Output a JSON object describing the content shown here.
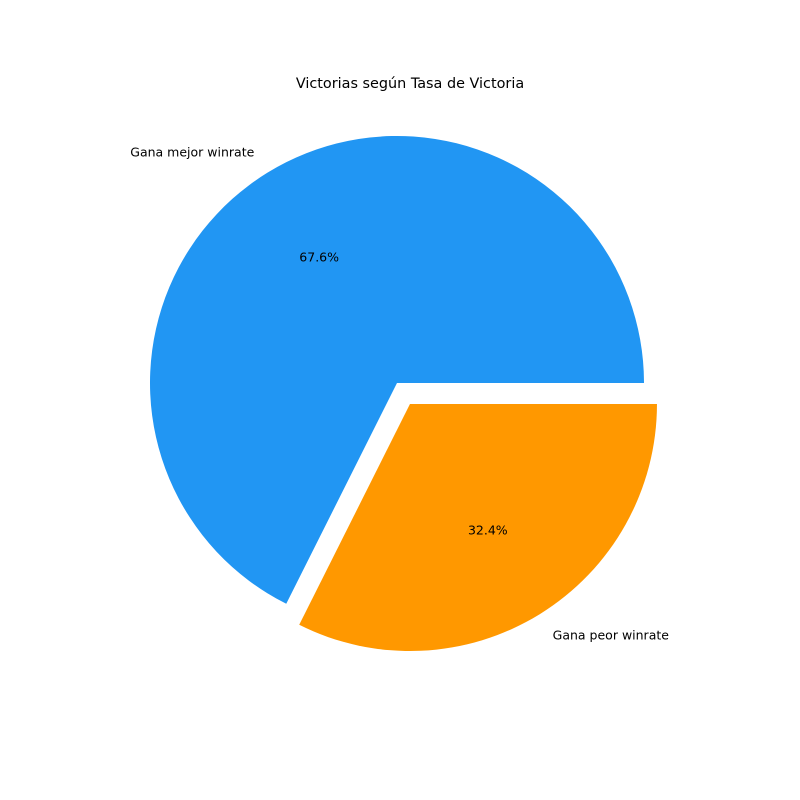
{
  "chart_data": {
    "type": "pie",
    "title": "Victorias según Tasa de Victoria",
    "slices": [
      {
        "label": "Gana mejor winrate",
        "value": 67.6,
        "pct_label": "67.6%",
        "color": "#2196F3",
        "exploded": false
      },
      {
        "label": "Gana peor winrate",
        "value": 32.4,
        "pct_label": "32.4%",
        "color": "#FF9800",
        "exploded": true
      }
    ],
    "legend": "none"
  }
}
